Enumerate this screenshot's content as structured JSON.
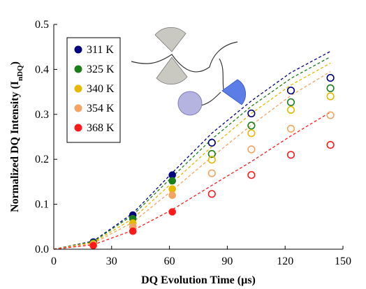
{
  "chart_data": {
    "type": "scatter",
    "title": "",
    "xlabel": "DQ Evolution Time (µs)",
    "ylabel_main": "Normalized DQ Intensity (I",
    "ylabel_sub": "nDQ",
    "ylabel_end": ")",
    "xlim": [
      0,
      150
    ],
    "ylim": [
      0,
      0.5
    ],
    "xticks": [
      0,
      30,
      60,
      90,
      120,
      150
    ],
    "yticks": [
      0.0,
      0.1,
      0.2,
      0.3,
      0.4,
      0.5
    ],
    "ytick_labels": [
      "0.0",
      "0.1",
      "0.2",
      "0.3",
      "0.4",
      "0.5"
    ],
    "grid": false,
    "legend_position": "top-left",
    "series": [
      {
        "name": "311 K",
        "color": "#000080",
        "points": [
          [
            20.5,
            0.016,
            "filled"
          ],
          [
            41,
            0.076,
            "filled"
          ],
          [
            61.5,
            0.165,
            "filled"
          ],
          [
            82,
            0.237,
            "open"
          ],
          [
            102.5,
            0.302,
            "open"
          ],
          [
            123,
            0.353,
            "open"
          ],
          [
            143.5,
            0.381,
            "open"
          ]
        ],
        "fit": [
          [
            0,
            0
          ],
          [
            20.5,
            0.018
          ],
          [
            41,
            0.08
          ],
          [
            61.5,
            0.17
          ],
          [
            82,
            0.258
          ],
          [
            102.5,
            0.33
          ],
          [
            123,
            0.393
          ],
          [
            143.5,
            0.44
          ]
        ]
      },
      {
        "name": "325 K",
        "color": "#1a7f1a",
        "points": [
          [
            20.5,
            0.014,
            "filled"
          ],
          [
            41,
            0.068,
            "filled"
          ],
          [
            61.5,
            0.152,
            "filled"
          ],
          [
            82,
            0.212,
            "open"
          ],
          [
            102.5,
            0.275,
            "open"
          ],
          [
            123,
            0.327,
            "open"
          ],
          [
            143.5,
            0.358,
            "open"
          ]
        ],
        "fit": [
          [
            0,
            0
          ],
          [
            20.5,
            0.017
          ],
          [
            41,
            0.076
          ],
          [
            61.5,
            0.161
          ],
          [
            82,
            0.245
          ],
          [
            102.5,
            0.318
          ],
          [
            123,
            0.38
          ],
          [
            143.5,
            0.428
          ]
        ]
      },
      {
        "name": "340 K",
        "color": "#e6b800",
        "points": [
          [
            20.5,
            0.012,
            "filled"
          ],
          [
            41,
            0.058,
            "filled"
          ],
          [
            61.5,
            0.134,
            "filled"
          ],
          [
            82,
            0.199,
            "open"
          ],
          [
            102.5,
            0.258,
            "open"
          ],
          [
            123,
            0.31,
            "open"
          ],
          [
            143.5,
            0.34,
            "open"
          ]
        ],
        "fit": [
          [
            0,
            0
          ],
          [
            20.5,
            0.015
          ],
          [
            41,
            0.068
          ],
          [
            61.5,
            0.148
          ],
          [
            82,
            0.228
          ],
          [
            102.5,
            0.302
          ],
          [
            123,
            0.365
          ],
          [
            143.5,
            0.414
          ]
        ]
      },
      {
        "name": "354 K",
        "color": "#f4a460",
        "points": [
          [
            20.5,
            0.01,
            "filled"
          ],
          [
            41,
            0.05,
            "filled"
          ],
          [
            61.5,
            0.12,
            "filled"
          ],
          [
            82,
            0.169,
            "open"
          ],
          [
            102.5,
            0.222,
            "open"
          ],
          [
            123,
            0.268,
            "open"
          ],
          [
            143.5,
            0.298,
            "open"
          ]
        ],
        "fit": [
          [
            0,
            0
          ],
          [
            20.5,
            0.013
          ],
          [
            41,
            0.06
          ],
          [
            61.5,
            0.131
          ],
          [
            82,
            0.205
          ],
          [
            102.5,
            0.276
          ],
          [
            123,
            0.342
          ],
          [
            143.5,
            0.395
          ]
        ]
      },
      {
        "name": "368 K",
        "color": "#ff1a1a",
        "points": [
          [
            20.5,
            0.008,
            "filled"
          ],
          [
            41,
            0.04,
            "filled"
          ],
          [
            61.5,
            0.083,
            "filled"
          ],
          [
            82,
            0.123,
            "open"
          ],
          [
            102.5,
            0.165,
            "open"
          ],
          [
            123,
            0.21,
            "open"
          ],
          [
            143.5,
            0.232,
            "open"
          ]
        ],
        "fit": [
          [
            0,
            0
          ],
          [
            20.5,
            0.01
          ],
          [
            41,
            0.042
          ],
          [
            61.5,
            0.088
          ],
          [
            82,
            0.142
          ],
          [
            102.5,
            0.195
          ],
          [
            123,
            0.252
          ],
          [
            143.5,
            0.305
          ]
        ]
      }
    ]
  }
}
